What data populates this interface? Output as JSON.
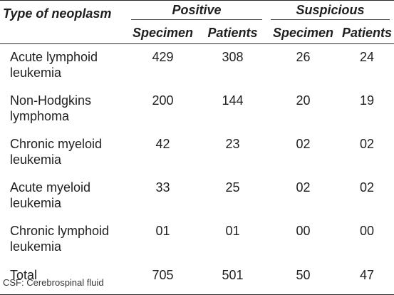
{
  "table": {
    "type_header": "Type of neoplasm",
    "groups": [
      "Positive",
      "Suspicious"
    ],
    "subheaders": [
      "Specimen",
      "Patients",
      "Specimen",
      "Patients"
    ],
    "rows": [
      {
        "name": "Acute lymphoid leukemia",
        "values": [
          "429",
          "308",
          "26",
          "24"
        ]
      },
      {
        "name": "Non-Hodgkins lymphoma",
        "values": [
          "200",
          "144",
          "20",
          "19"
        ]
      },
      {
        "name": "Chronic myeloid leukemia",
        "values": [
          "42",
          "23",
          "02",
          "02"
        ]
      },
      {
        "name": "Acute myeloid leukemia",
        "values": [
          "33",
          "25",
          "02",
          "02"
        ]
      },
      {
        "name": "Chronic lymphoid leukemia",
        "values": [
          "01",
          "01",
          "00",
          "00"
        ]
      },
      {
        "name": "Total",
        "values": [
          "705",
          "501",
          "50",
          "47"
        ]
      }
    ]
  },
  "footnote": "CSF: Cerebrospinal fluid"
}
